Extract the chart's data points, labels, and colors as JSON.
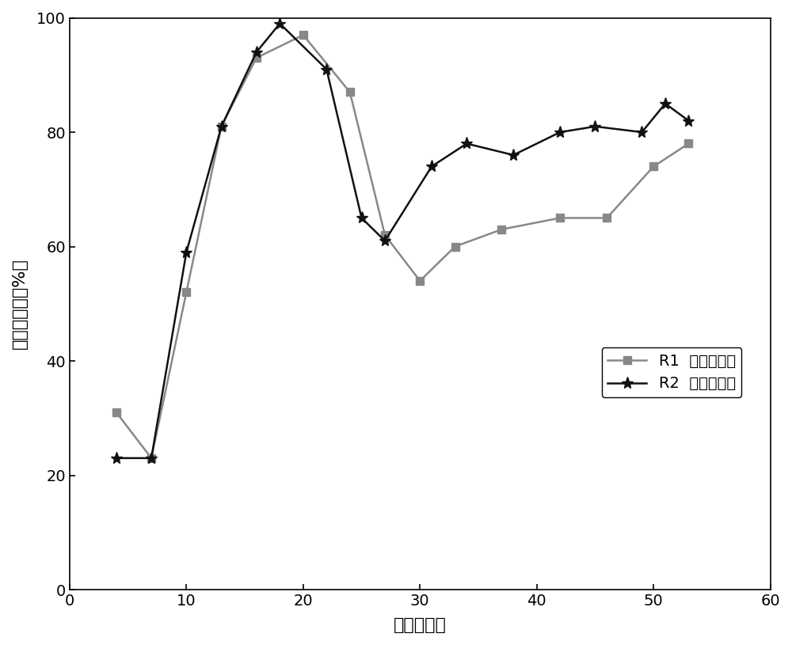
{
  "R1_x": [
    4,
    7,
    10,
    13,
    16,
    20,
    24,
    27,
    30,
    33,
    37,
    42,
    46,
    50,
    53
  ],
  "R1_y": [
    31,
    23,
    52,
    81,
    93,
    97,
    87,
    62,
    54,
    60,
    63,
    65,
    65,
    74,
    78
  ],
  "R2_x": [
    4,
    7,
    10,
    13,
    16,
    18,
    22,
    25,
    27,
    31,
    34,
    38,
    42,
    45,
    49,
    51,
    53
  ],
  "R2_y": [
    23,
    23,
    59,
    81,
    94,
    99,
    91,
    65,
    61,
    74,
    78,
    76,
    80,
    81,
    80,
    85,
    82
  ],
  "xlabel": "时间（天）",
  "ylabel": "总氮去除率（%）",
  "xlim": [
    0,
    60
  ],
  "ylim": [
    0,
    100
  ],
  "xticks": [
    0,
    10,
    20,
    30,
    40,
    50,
    60
  ],
  "yticks": [
    0,
    20,
    40,
    60,
    80,
    100
  ],
  "legend_R1": "R1  总氮去除率",
  "legend_R2": "R2  总氮去除率",
  "R1_color": "#888888",
  "R2_color": "#111111",
  "background_color": "#ffffff"
}
